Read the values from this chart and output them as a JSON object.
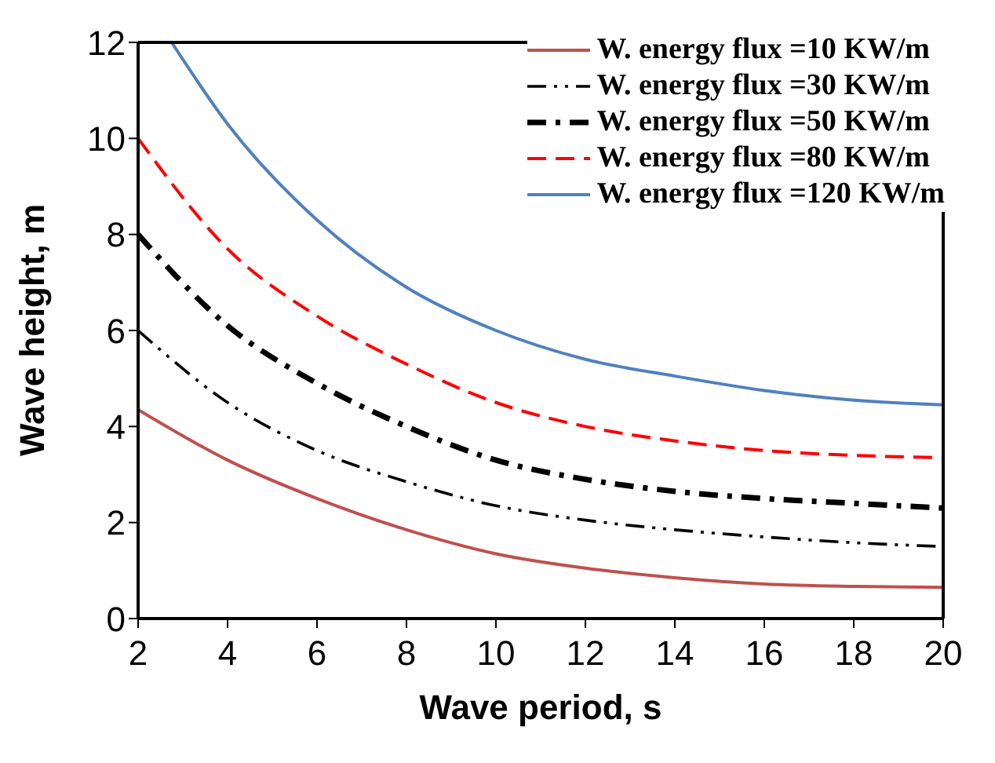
{
  "chart_data": {
    "type": "line",
    "xlabel": "Wave period, s",
    "ylabel": "Wave height, m",
    "x": [
      2,
      4,
      6,
      8,
      10,
      12,
      14,
      16,
      18,
      20
    ],
    "xlim": [
      2,
      20
    ],
    "xticks": [
      2,
      4,
      6,
      8,
      10,
      12,
      14,
      16,
      18,
      20
    ],
    "ylim": [
      0,
      12
    ],
    "yticks": [
      0,
      2,
      4,
      6,
      8,
      10,
      12
    ],
    "grid": false,
    "legend": "top right",
    "marker": "none",
    "series": [
      {
        "name": "W. energy flux =10 KW/m",
        "color": "#c0504d",
        "line_style": "solid",
        "values": [
          4.35,
          3.3,
          2.5,
          1.85,
          1.35,
          1.05,
          0.85,
          0.72,
          0.67,
          0.65
        ]
      },
      {
        "name": "W. energy flux =30 KW/m",
        "color": "#000000",
        "line_style": "dashdotdot",
        "values": [
          6.0,
          4.5,
          3.5,
          2.85,
          2.35,
          2.05,
          1.85,
          1.7,
          1.58,
          1.5
        ]
      },
      {
        "name": "W. energy flux =50 KW/m",
        "color": "#000000",
        "line_style": "dashdot",
        "values": [
          8.0,
          6.1,
          4.9,
          4.0,
          3.3,
          2.9,
          2.65,
          2.5,
          2.4,
          2.3
        ]
      },
      {
        "name": "W. energy flux =80 KW/m",
        "color": "#ff0000",
        "line_style": "dashed",
        "values": [
          10.0,
          7.7,
          6.3,
          5.3,
          4.5,
          4.0,
          3.7,
          3.5,
          3.4,
          3.35
        ]
      },
      {
        "name": "W. energy flux =120 KW/m",
        "color": "#4f81bd",
        "line_style": "solid",
        "x": [
          2.75,
          4,
          6,
          8,
          10,
          12,
          14,
          16,
          18,
          20
        ],
        "values": [
          12.0,
          10.3,
          8.3,
          6.9,
          6.0,
          5.4,
          5.05,
          4.75,
          4.55,
          4.45
        ]
      }
    ]
  }
}
